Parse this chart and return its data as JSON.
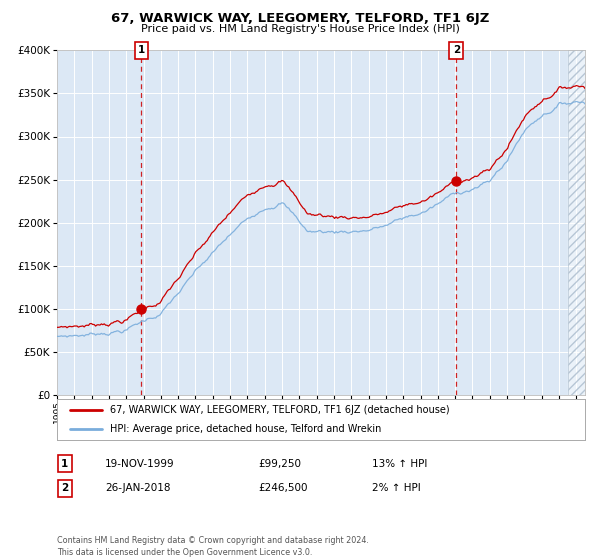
{
  "title": "67, WARWICK WAY, LEEGOMERY, TELFORD, TF1 6JZ",
  "subtitle": "Price paid vs. HM Land Registry's House Price Index (HPI)",
  "legend_line1": "67, WARWICK WAY, LEEGOMERY, TELFORD, TF1 6JZ (detached house)",
  "legend_line2": "HPI: Average price, detached house, Telford and Wrekin",
  "annotation1_num": "1",
  "annotation1_date": "19-NOV-1999",
  "annotation1_price": "£99,250",
  "annotation1_hpi": "13% ↑ HPI",
  "annotation2_num": "2",
  "annotation2_date": "26-JAN-2018",
  "annotation2_price": "£246,500",
  "annotation2_hpi": "2% ↑ HPI",
  "footer": "Contains HM Land Registry data © Crown copyright and database right 2024.\nThis data is licensed under the Open Government Licence v3.0.",
  "sale1_year": 1999.88,
  "sale1_price": 99250,
  "sale2_year": 2018.07,
  "sale2_price": 246500,
  "red_line_color": "#cc0000",
  "blue_line_color": "#7aaddc",
  "background_color": "#dce8f5",
  "grid_color": "#ffffff",
  "ylim": [
    0,
    400000
  ],
  "xlim_start": 1995,
  "xlim_end": 2025.5
}
